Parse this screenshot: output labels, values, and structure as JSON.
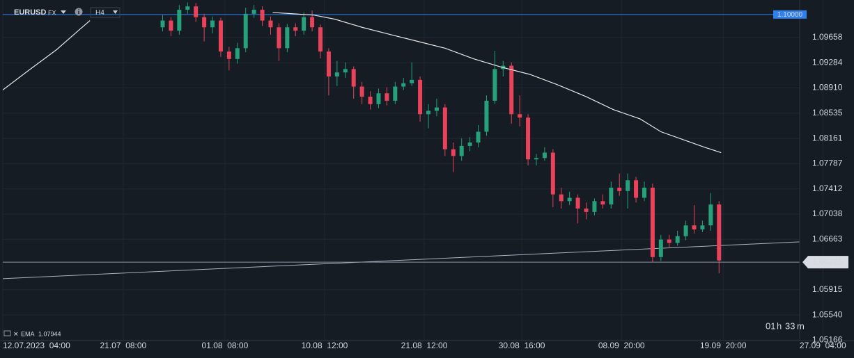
{
  "chart_data": {
    "type": "candlestick",
    "symbol": "EURUSD",
    "market": "FX",
    "timeframe": "H4",
    "up_color": "#26a17b",
    "down_color": "#e8435a",
    "grid": true,
    "xlim": [
      0,
      410
    ],
    "ylim": [
      1.0516,
      1.10215
    ],
    "xticks": [
      {
        "value": 0,
        "label": "12.07.2023  04:00"
      },
      {
        "value": 58,
        "label": "21.07  08:00"
      },
      {
        "value": 107,
        "label": "01.08  08:00"
      },
      {
        "value": 155,
        "label": "10.08  12:00"
      },
      {
        "value": 203,
        "label": "21.08  12:00"
      },
      {
        "value": 250,
        "label": "30.08  16:00"
      },
      {
        "value": 298,
        "label": "08.09  20:00"
      },
      {
        "value": 347,
        "label": "19.09  20:00"
      },
      {
        "value": 395,
        "label": "27.09  04:00"
      }
    ],
    "yticks": [
      1.09658,
      1.09284,
      {
        "value": 1.0891,
        "label": "1.08910"
      },
      1.08535,
      1.08161,
      1.07787,
      1.07412,
      1.07038,
      1.06663,
      1.05915,
      {
        "value": 1.0554,
        "label": "1.05540"
      },
      1.05166
    ],
    "hlines": [
      {
        "value": 1.1,
        "label": "1.10000",
        "color": "#2f80ed"
      },
      {
        "value": 1.06325,
        "label": "1.06325",
        "color": "#8c96a3"
      }
    ],
    "trendline": {
      "x": [
        0,
        387
      ],
      "values": [
        1.0608,
        1.0663
      ],
      "color": "#a9b4c2"
    },
    "x": [
      77,
      81,
      85,
      89,
      93,
      97,
      101,
      105,
      109,
      113,
      117,
      121,
      125,
      129,
      133,
      137,
      141,
      145,
      149,
      153,
      157,
      161,
      165,
      169,
      173,
      177,
      181,
      185,
      189,
      193,
      197,
      201,
      205,
      209,
      213,
      217,
      221,
      225,
      229,
      233,
      237,
      241,
      245,
      249,
      253,
      257,
      261,
      265,
      269,
      273,
      277,
      281,
      285,
      289,
      293,
      297,
      301,
      305,
      309,
      313,
      317,
      321,
      325,
      329,
      333,
      337,
      341,
      345
    ],
    "open": [
      1.0981,
      1.0991,
      1.0976,
      1.1007,
      1.1012,
      1.0996,
      1.0981,
      1.0991,
      1.0945,
      1.0934,
      1.095,
      1.1001,
      1.1007,
      1.0991,
      1.0981,
      1.095,
      1.0981,
      1.0976,
      1.0996,
      1.0981,
      1.0945,
      1.0908,
      1.0914,
      1.0919,
      1.0893,
      1.0878,
      1.0867,
      1.0883,
      1.0872,
      1.0893,
      1.0898,
      1.0903,
      1.0852,
      1.0857,
      1.0862,
      1.08,
      1.079,
      1.0805,
      1.081,
      1.0826,
      1.0872,
      1.0919,
      1.0924,
      1.0852,
      1.0847,
      1.0785,
      1.0787,
      1.0795,
      1.0733,
      1.0723,
      1.0728,
      1.0712,
      1.0707,
      1.0723,
      1.0718,
      1.0743,
      1.0738,
      1.0754,
      1.0728,
      1.0743,
      1.064,
      1.0666,
      1.0661,
      1.0671,
      1.0687,
      1.0681,
      1.0687,
      1.0718
    ],
    "high": [
      1.0999,
      1.0996,
      1.1014,
      1.1018,
      1.1017,
      1.1001,
      1.0997,
      1.0995,
      1.0952,
      1.0958,
      1.101,
      1.1014,
      1.1012,
      1.0997,
      1.0987,
      1.0986,
      1.0987,
      1.1003,
      1.1006,
      1.0985,
      1.095,
      1.0931,
      1.0929,
      1.0923,
      1.09,
      1.0886,
      1.089,
      1.0892,
      1.09,
      1.0906,
      1.0929,
      1.0908,
      1.0867,
      1.0875,
      1.0867,
      1.081,
      1.0816,
      1.0818,
      1.0836,
      1.088,
      1.0946,
      1.0931,
      1.0929,
      1.088,
      1.0852,
      1.0793,
      1.0803,
      1.08,
      1.0743,
      1.0737,
      1.0733,
      1.0721,
      1.0727,
      1.0733,
      1.0752,
      1.0764,
      1.0764,
      1.0759,
      1.0752,
      1.0749,
      1.0673,
      1.0673,
      1.0679,
      1.0694,
      1.0717,
      1.0694,
      1.0735,
      1.0723
    ],
    "low": [
      1.0975,
      1.0968,
      1.097,
      1.1001,
      1.0989,
      1.096,
      1.0972,
      1.0937,
      1.0917,
      1.0927,
      1.0944,
      1.0995,
      1.0983,
      1.097,
      1.0931,
      1.0944,
      1.0968,
      1.097,
      1.0975,
      1.0935,
      1.088,
      1.0894,
      1.0906,
      1.0875,
      1.0867,
      1.0859,
      1.0861,
      1.0865,
      1.0867,
      1.0888,
      1.0894,
      1.0841,
      1.0831,
      1.0849,
      1.079,
      1.0766,
      1.0783,
      1.0797,
      1.0803,
      1.082,
      1.0867,
      1.0908,
      1.0838,
      1.0834,
      1.0776,
      1.0776,
      1.0783,
      1.0714,
      1.0712,
      1.0717,
      1.069,
      1.0696,
      1.0702,
      1.0712,
      1.0712,
      1.0731,
      1.0712,
      1.0721,
      1.0723,
      1.0632,
      1.0634,
      1.0655,
      1.0657,
      1.0665,
      1.0675,
      1.0677,
      1.0679,
      1.0616
    ],
    "close": [
      1.0991,
      1.0976,
      1.1007,
      1.1012,
      1.0996,
      1.0981,
      1.0991,
      1.0945,
      1.0934,
      1.095,
      1.1001,
      1.1007,
      1.0991,
      1.0981,
      1.095,
      1.0981,
      1.0976,
      1.0996,
      1.0981,
      1.0945,
      1.0908,
      1.0914,
      1.0919,
      1.0893,
      1.0878,
      1.0867,
      1.0883,
      1.0872,
      1.0893,
      1.0898,
      1.0903,
      1.0852,
      1.0857,
      1.0862,
      1.08,
      1.079,
      1.0805,
      1.081,
      1.0826,
      1.0872,
      1.0919,
      1.0924,
      1.0852,
      1.0847,
      1.0785,
      1.0787,
      1.0795,
      1.0733,
      1.0723,
      1.0728,
      1.0712,
      1.0707,
      1.0723,
      1.0718,
      1.0743,
      1.0738,
      1.0754,
      1.0728,
      1.0743,
      1.064,
      1.0666,
      1.0661,
      1.0671,
      1.0687,
      1.0681,
      1.0687,
      1.0718,
      1.0635
    ],
    "series": [
      {
        "name": "EMA",
        "color": "#e6e6e6",
        "last_label": "1.07944",
        "x": [
          0,
          12,
          26,
          36,
          42,
          86,
          130,
          140,
          150,
          160,
          173,
          187,
          200,
          213,
          227,
          240,
          254,
          267,
          281,
          294,
          307,
          317,
          328,
          338,
          346
        ],
        "values": [
          1.0888,
          1.0916,
          1.0948,
          1.0975,
          1.0991,
          null,
          1.1003,
          1.1001,
          1.0999,
          1.0993,
          1.0981,
          1.097,
          1.096,
          1.095,
          1.0934,
          1.0922,
          1.0911,
          1.0896,
          1.0878,
          1.0859,
          1.0845,
          1.0826,
          1.0814,
          1.0803,
          1.0795
        ]
      }
    ],
    "countdown": [
      "01",
      "h",
      "33",
      "m"
    ]
  }
}
